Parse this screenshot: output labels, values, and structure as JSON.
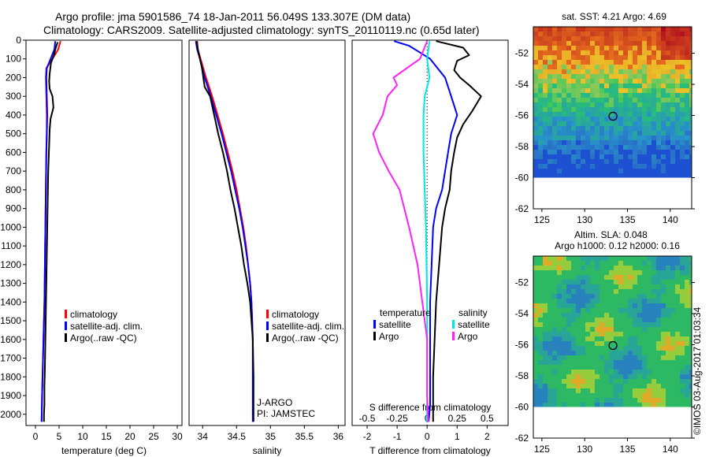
{
  "header": {
    "line1": "Argo profile: jma 5901586_74 18-Jan-2011 56.049S 133.307E (DM data)",
    "line2": "Climatology: CARS2009. Satellite-adjusted climatology: synTS_20110119.nc (0.65d later)"
  },
  "colors": {
    "climatology": "#ff0000",
    "satellite": "#0000ff",
    "argo": "#000000",
    "sat_salinity": "#00e5e5",
    "argo_salinity": "#ff22ff"
  },
  "chart_data": [
    {
      "id": "temperature",
      "type": "line",
      "xlabel": "temperature (deg C)",
      "ylabel": "",
      "xlim": [
        -2,
        31
      ],
      "ylim": [
        2060,
        0
      ],
      "xticks": [
        0,
        5,
        10,
        15,
        20,
        25,
        30
      ],
      "yticks": [
        0,
        100,
        200,
        300,
        400,
        500,
        600,
        700,
        800,
        900,
        1000,
        1100,
        1200,
        1300,
        1400,
        1500,
        1600,
        1700,
        1800,
        1900,
        2000
      ],
      "legend": [
        "climatology",
        "satellite-adj. clim.",
        "Argo(..raw -QC)"
      ],
      "series": [
        {
          "name": "climatology",
          "x": [
            5.3,
            4.8,
            3.6,
            2.3,
            2.2,
            2.3,
            2.4,
            2.4,
            2.3,
            2.2,
            2.1,
            2.0,
            1.9,
            1.8,
            1.7,
            1.6,
            1.5,
            1.4,
            1.3
          ],
          "y": [
            5,
            50,
            100,
            150,
            200,
            300,
            400,
            500,
            600,
            800,
            1000,
            1200,
            1400,
            1500,
            1600,
            1700,
            1800,
            1900,
            2040
          ]
        },
        {
          "name": "satellite-adj. clim.",
          "x": [
            4.2,
            4.0,
            3.2,
            2.4,
            2.3,
            2.4,
            2.5,
            2.4,
            2.3,
            2.2,
            2.1,
            2.0,
            1.9,
            1.8,
            1.7,
            1.6,
            1.5,
            1.4,
            1.3
          ],
          "y": [
            5,
            50,
            100,
            150,
            200,
            300,
            400,
            500,
            600,
            800,
            1000,
            1200,
            1400,
            1500,
            1600,
            1700,
            1800,
            1900,
            2040
          ]
        },
        {
          "name": "Argo(..raw -QC)",
          "x": [
            4.7,
            4.3,
            3.9,
            3.3,
            3.0,
            2.9,
            3.0,
            3.6,
            3.8,
            3.2,
            3.0,
            2.9,
            2.7,
            2.6,
            2.5,
            2.4,
            2.3,
            2.2,
            2.1,
            2.0,
            1.9,
            1.9,
            1.8,
            1.8
          ],
          "y": [
            10,
            40,
            80,
            120,
            180,
            220,
            260,
            300,
            360,
            420,
            480,
            560,
            700,
            850,
            1000,
            1150,
            1300,
            1450,
            1600,
            1750,
            1850,
            1950,
            2000,
            2040
          ]
        }
      ]
    },
    {
      "id": "salinity",
      "type": "line",
      "xlabel": "salinity",
      "ylabel": "",
      "xlim": [
        33.8,
        36.1
      ],
      "ylim": [
        2060,
        0
      ],
      "xticks": [
        34,
        34.5,
        35,
        35.5,
        36
      ],
      "xticklabels": [
        "34",
        "34.5",
        "35",
        "35.5",
        "36"
      ],
      "legend": [
        "climatology",
        "satellite-adj. clim.",
        "Argo(..raw -QC)"
      ],
      "annotation": [
        "J-ARGO",
        "PI: JAMSTEC"
      ],
      "series": [
        {
          "name": "climatology",
          "x": [
            33.92,
            33.93,
            33.97,
            34.05,
            34.14,
            34.22,
            34.3,
            34.37,
            34.44,
            34.5,
            34.55,
            34.6,
            34.64,
            34.67,
            34.7,
            34.72,
            34.73,
            34.74,
            34.74,
            34.74,
            34.74
          ],
          "y": [
            5,
            50,
            100,
            200,
            300,
            400,
            500,
            600,
            700,
            800,
            900,
            1000,
            1100,
            1200,
            1300,
            1400,
            1500,
            1600,
            1800,
            1900,
            2040
          ]
        },
        {
          "name": "satellite-adj. clim.",
          "x": [
            33.9,
            33.92,
            33.96,
            34.03,
            34.12,
            34.2,
            34.28,
            34.35,
            34.42,
            34.48,
            34.54,
            34.59,
            34.63,
            34.67,
            34.7,
            34.72,
            34.73,
            34.74,
            34.74,
            34.74,
            34.74
          ],
          "y": [
            5,
            50,
            100,
            200,
            300,
            400,
            500,
            600,
            700,
            800,
            900,
            1000,
            1100,
            1200,
            1300,
            1400,
            1500,
            1600,
            1800,
            1900,
            2040
          ]
        },
        {
          "name": "Argo(..raw -QC)",
          "x": [
            33.91,
            33.93,
            33.99,
            34.03,
            34.11,
            34.17,
            34.23,
            34.3,
            34.36,
            34.41,
            34.47,
            34.52,
            34.57,
            34.61,
            34.66,
            34.7,
            34.72,
            34.74,
            34.75,
            34.75,
            34.75
          ],
          "y": [
            5,
            50,
            150,
            250,
            300,
            400,
            500,
            600,
            700,
            800,
            900,
            1000,
            1100,
            1200,
            1300,
            1400,
            1500,
            1600,
            1800,
            1900,
            2040
          ]
        }
      ]
    },
    {
      "id": "differences",
      "type": "line",
      "xlabel": "T difference from climatology",
      "xlabel2": "S difference from climatology",
      "xlim": [
        -2.5,
        2.7
      ],
      "ylim": [
        2060,
        0
      ],
      "xticks": [
        -2,
        -1,
        0,
        1,
        2
      ],
      "xticks2": [
        -0.5,
        -0.25,
        0,
        0.25,
        0.5
      ],
      "xticklabels2": [
        "-0.5",
        "-0.25",
        "0",
        "0.25",
        "0.5"
      ],
      "legend_titles": [
        "temperature",
        "salinity"
      ],
      "legend": [
        "satellite",
        "Argo",
        "satellite",
        "Argo"
      ],
      "series": [
        {
          "name": "temperature satellite",
          "x": [
            -1.1,
            -0.6,
            -0.3,
            0.1,
            0.6,
            0.8,
            1.0,
            0.8,
            0.7,
            0.6,
            0.5,
            0.3,
            0.2,
            0.15,
            0.1,
            0.1,
            0.1,
            0.1,
            0.05
          ],
          "y": [
            5,
            30,
            60,
            100,
            200,
            300,
            400,
            500,
            600,
            700,
            800,
            900,
            1000,
            1200,
            1400,
            1600,
            1800,
            1950,
            2040
          ]
        },
        {
          "name": "temperature Argo",
          "x": [
            0.3,
            1.2,
            1.4,
            1.0,
            0.9,
            1.1,
            1.4,
            1.8,
            1.5,
            1.2,
            1.0,
            0.9,
            0.8,
            0.75,
            0.6,
            0.5,
            0.4,
            0.3,
            0.25,
            0.2,
            0.2,
            0.2
          ],
          "y": [
            5,
            40,
            80,
            110,
            160,
            200,
            240,
            300,
            380,
            450,
            520,
            600,
            700,
            800,
            900,
            1000,
            1200,
            1400,
            1600,
            1800,
            1950,
            2040
          ]
        },
        {
          "name": "salinity satellite",
          "x": [
            0.02,
            0.0,
            0.02,
            -0.02,
            -0.03,
            -0.03,
            -0.02,
            -0.01,
            0.0,
            0.0,
            0.0
          ],
          "y": [
            5,
            100,
            200,
            300,
            400,
            600,
            800,
            1000,
            1400,
            1800,
            2040
          ]
        },
        {
          "name": "salinity Argo",
          "x": [
            0.0,
            -0.06,
            -0.28,
            -0.25,
            -0.33,
            -0.37,
            -0.45,
            -0.4,
            -0.32,
            -0.23,
            -0.15,
            -0.08,
            -0.04,
            0.0,
            0.0,
            0.01
          ],
          "y": [
            5,
            100,
            200,
            240,
            300,
            400,
            500,
            600,
            700,
            800,
            1000,
            1200,
            1400,
            1600,
            1900,
            2040
          ]
        }
      ]
    },
    {
      "id": "sst_map",
      "type": "heatmap",
      "title": "sat. SST: 4.21  Argo: 4.69",
      "xlim": [
        124,
        142.5
      ],
      "ylim": [
        -62,
        -50.3
      ],
      "xticks": [
        125,
        130,
        135,
        140
      ],
      "yticks": [
        -52,
        -54,
        -56,
        -58,
        -60,
        -62
      ],
      "marker": {
        "lon": 133.307,
        "lat": -56.049
      },
      "data_lat_min": -60
    },
    {
      "id": "sla_map",
      "type": "heatmap",
      "title": "Altim. SLA: 0.048",
      "subtitle": "Argo h1000: 0.12 h2000: 0.16",
      "xlim": [
        124,
        142.5
      ],
      "ylim": [
        -62,
        -50.3
      ],
      "xticks": [
        125,
        130,
        135,
        140
      ],
      "yticks": [
        -52,
        -54,
        -56,
        -58,
        -60,
        -62
      ],
      "marker": {
        "lon": 133.307,
        "lat": -56.049
      },
      "data_lat_min": -60
    }
  ],
  "footer": {
    "credit": "©IMOS 03-Aug-2017 01:03:34"
  }
}
